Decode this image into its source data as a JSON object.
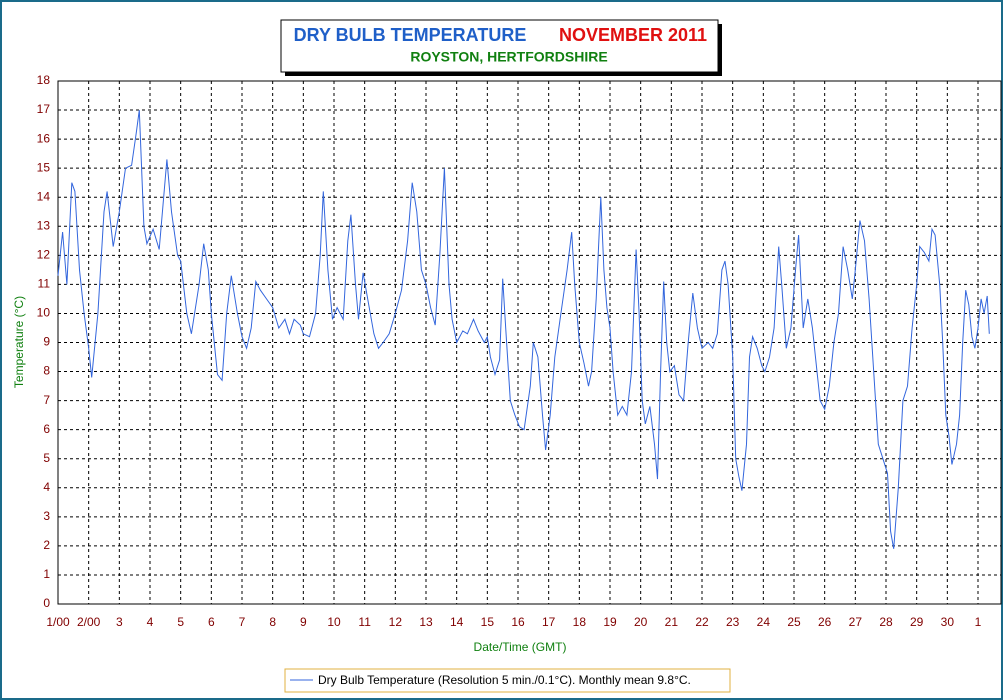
{
  "chart_data": {
    "type": "line",
    "title": "DRY BULB TEMPERATURE",
    "title_period": "NOVEMBER 2011",
    "subtitle": "ROYSTON, HERTFORDSHIRE",
    "x_label": "Date/Time (GMT)",
    "y_label": "Temperature (°C)",
    "xlim": [
      1,
      31.75
    ],
    "ylim": [
      0,
      18
    ],
    "xticks": [
      {
        "value": 1,
        "label": "1/00"
      },
      {
        "value": 2,
        "label": "2/00"
      },
      3,
      4,
      5,
      6,
      7,
      8,
      9,
      10,
      11,
      12,
      13,
      14,
      15,
      16,
      17,
      18,
      19,
      20,
      21,
      22,
      23,
      24,
      25,
      26,
      27,
      28,
      29,
      30,
      {
        "value": 31,
        "label": "1"
      }
    ],
    "yticks": [
      0,
      1,
      2,
      3,
      4,
      5,
      6,
      7,
      8,
      9,
      10,
      11,
      12,
      13,
      14,
      15,
      16,
      17,
      18
    ],
    "grid": true,
    "legend": "bottom",
    "series": [
      {
        "name": "Dry Bulb Temperature (Resolution 5 min./0.1°C). Monthly mean 9.8°C.",
        "color": "#3366dd",
        "x": [
          1.0,
          1.15,
          1.29,
          1.45,
          1.55,
          1.7,
          1.85,
          2.0,
          2.1,
          2.3,
          2.5,
          2.6,
          2.8,
          3.0,
          3.2,
          3.4,
          3.55,
          3.65,
          3.8,
          3.9,
          4.1,
          4.3,
          4.55,
          4.7,
          4.9,
          5.0,
          5.2,
          5.35,
          5.6,
          5.75,
          5.9,
          6.0,
          6.2,
          6.35,
          6.5,
          6.65,
          6.85,
          7.0,
          7.15,
          7.3,
          7.45,
          7.6,
          7.8,
          8.0,
          8.2,
          8.4,
          8.55,
          8.7,
          8.9,
          9.0,
          9.2,
          9.4,
          9.55,
          9.65,
          9.8,
          9.95,
          10.1,
          10.3,
          10.45,
          10.55,
          10.7,
          10.8,
          10.95,
          11.1,
          11.3,
          11.45,
          11.6,
          11.8,
          12.0,
          12.2,
          12.4,
          12.55,
          12.7,
          12.85,
          13.0,
          13.15,
          13.3,
          13.45,
          13.6,
          13.75,
          13.85,
          14.0,
          14.2,
          14.35,
          14.55,
          14.7,
          14.9,
          15.0,
          15.1,
          15.25,
          15.4,
          15.5,
          15.6,
          15.75,
          15.9,
          16.05,
          16.2,
          16.4,
          16.5,
          16.65,
          16.8,
          16.9,
          17.05,
          17.2,
          17.4,
          17.6,
          17.75,
          17.85,
          18.0,
          18.15,
          18.3,
          18.4,
          18.55,
          18.7,
          18.8,
          18.9,
          19.0,
          19.1,
          19.25,
          19.4,
          19.55,
          19.7,
          19.85,
          19.95,
          20.05,
          20.15,
          20.3,
          20.45,
          20.55,
          20.65,
          20.75,
          20.85,
          20.95,
          21.1,
          21.25,
          21.4,
          21.55,
          21.7,
          21.85,
          22.0,
          22.2,
          22.35,
          22.5,
          22.65,
          22.75,
          22.85,
          23.0,
          23.1,
          23.2,
          23.3,
          23.45,
          23.55,
          23.65,
          23.8,
          23.95,
          24.05,
          24.2,
          24.35,
          24.5,
          24.6,
          24.75,
          24.9,
          25.05,
          25.15,
          25.3,
          25.45,
          25.6,
          25.75,
          25.85,
          26.0,
          26.15,
          26.3,
          26.45,
          26.6,
          26.75,
          26.9,
          27.0,
          27.15,
          27.3,
          27.45,
          27.6,
          27.75,
          27.9,
          28.05,
          28.15,
          28.25,
          28.4,
          28.55,
          28.7,
          28.85,
          29.0,
          29.1,
          29.25,
          29.4,
          29.5,
          29.6,
          29.75,
          29.85,
          29.95,
          30.05,
          30.15,
          30.3,
          30.4,
          30.5,
          30.6,
          30.7,
          30.8,
          30.9,
          31.0,
          31.1,
          31.2,
          31.3,
          31.37
        ],
        "values": [
          11.3,
          12.8,
          11.0,
          14.5,
          14.2,
          11.5,
          10,
          8.8,
          7.8,
          10,
          13.5,
          14.2,
          12.3,
          13.5,
          15.0,
          15.1,
          16.2,
          17.0,
          13,
          12.4,
          12.9,
          12.2,
          15.3,
          13.5,
          12,
          11.8,
          10,
          9.3,
          11,
          12.4,
          11.5,
          10,
          7.9,
          7.7,
          10,
          11.3,
          10,
          9.2,
          8.8,
          9.5,
          11.1,
          10.8,
          10.5,
          10.2,
          9.5,
          9.8,
          9.3,
          9.8,
          9.6,
          9.3,
          9.2,
          10,
          12,
          14.2,
          11.5,
          9.8,
          10.2,
          9.8,
          12.5,
          13.4,
          11,
          9.8,
          11.4,
          10.5,
          9.3,
          8.8,
          9.0,
          9.3,
          10,
          10.8,
          12.5,
          14.5,
          13.5,
          11.5,
          11.0,
          10.2,
          9.6,
          12,
          15.0,
          11,
          9.8,
          9.0,
          9.4,
          9.3,
          9.8,
          9.4,
          9.0,
          9.2,
          8.5,
          7.9,
          8.4,
          11.2,
          9.5,
          7.0,
          6.5,
          6.1,
          6.0,
          7.5,
          9.0,
          8.5,
          6.5,
          5.3,
          6.5,
          8.5,
          10,
          11.5,
          12.8,
          11,
          9.0,
          8.3,
          7.5,
          8.0,
          10.5,
          14.0,
          11.5,
          10.2,
          9.5,
          8,
          6.5,
          6.8,
          6.5,
          8,
          12.2,
          10,
          7,
          6.2,
          6.8,
          5.5,
          4.3,
          8,
          11.1,
          9,
          8,
          8.2,
          7.2,
          7.0,
          9,
          10.7,
          9.5,
          8.8,
          9,
          8.8,
          9.3,
          11.5,
          11.8,
          11,
          8.5,
          5,
          4.4,
          3.9,
          5.5,
          8.5,
          9.2,
          8.8,
          8.2,
          8,
          8.5,
          9.5,
          12.3,
          11,
          8.8,
          9.5,
          11.5,
          12.7,
          9.5,
          10.5,
          9.5,
          8,
          7,
          6.7,
          7.5,
          9,
          10,
          12.3,
          11.5,
          10.5,
          11.5,
          13.2,
          12.5,
          10.5,
          8,
          5.5,
          5.0,
          4.5,
          2.5,
          1.9,
          4,
          7,
          7.5,
          9.5,
          11,
          12.3,
          12.1,
          11.8,
          12.9,
          12.7,
          11,
          9,
          6.5,
          5.8,
          4.8,
          5.5,
          6.5,
          9,
          10.8,
          10.3,
          9.2,
          8.8,
          9.5,
          10.5,
          10.0,
          10.6,
          9.3
        ]
      }
    ]
  }
}
